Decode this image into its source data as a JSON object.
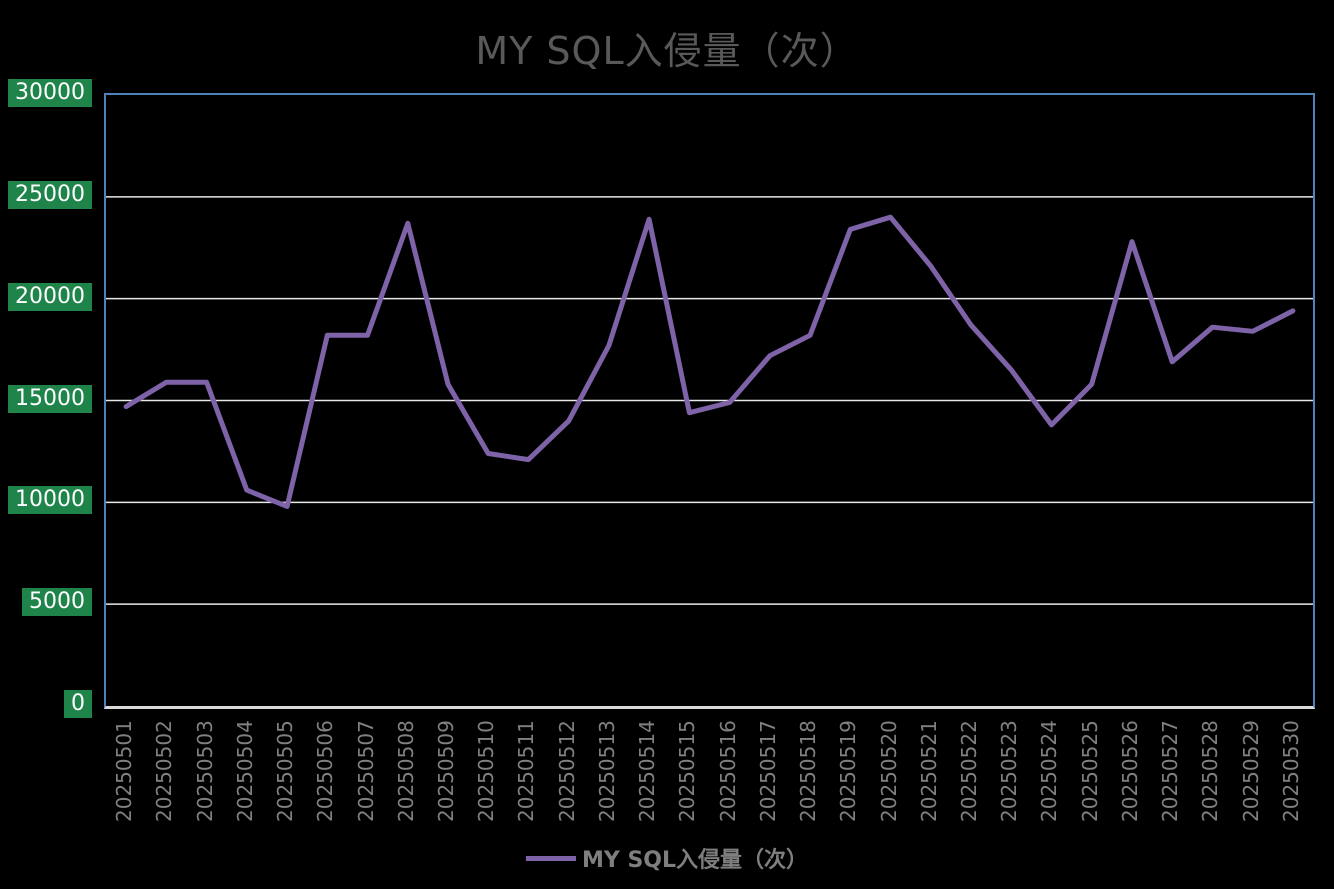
{
  "chart": {
    "title": "MY SQL入侵量（次）",
    "legend_label": "MY SQL入侵量（次）"
  },
  "chart_data": {
    "type": "line",
    "title": "MY SQL入侵量（次）",
    "categories": [
      "20250501",
      "20250502",
      "20250503",
      "20250504",
      "20250505",
      "20250506",
      "20250507",
      "20250508",
      "20250509",
      "20250510",
      "20250511",
      "20250512",
      "20250513",
      "20250514",
      "20250515",
      "20250516",
      "20250517",
      "20250518",
      "20250519",
      "20250520",
      "20250521",
      "20250522",
      "20250523",
      "20250524",
      "20250525",
      "20250526",
      "20250527",
      "20250528",
      "20250529",
      "20250530"
    ],
    "series": [
      {
        "name": "MY SQL入侵量（次）",
        "values": [
          14700,
          15900,
          15900,
          10600,
          9800,
          18200,
          18200,
          23700,
          15800,
          12400,
          12100,
          14000,
          17700,
          23900,
          14400,
          14900,
          17200,
          18200,
          23400,
          24000,
          21600,
          18700,
          16500,
          13800,
          15800,
          22800,
          16900,
          18600,
          18400,
          19400
        ]
      }
    ],
    "xlabel": "",
    "ylabel": "",
    "ylim": [
      0,
      30000
    ],
    "y_tick_step": 5000,
    "y_ticks": [
      "0",
      "5000",
      "10000",
      "15000",
      "20000",
      "25000",
      "30000"
    ],
    "grid": "horizontal",
    "legend_position": "bottom",
    "x_label_rotation_deg": 90
  },
  "colors": {
    "background": "#000000",
    "line": "#7E63A8",
    "plot_border": "#4F81BD",
    "bottom_axis": "#D9D9D9",
    "gridline": "#E8E8E8",
    "y_label_bg": "#1E8449",
    "y_label_text": "#FFFFFF",
    "x_label_text": "#808080",
    "title_text": "#595959",
    "legend_text": "#7F7F7F"
  }
}
